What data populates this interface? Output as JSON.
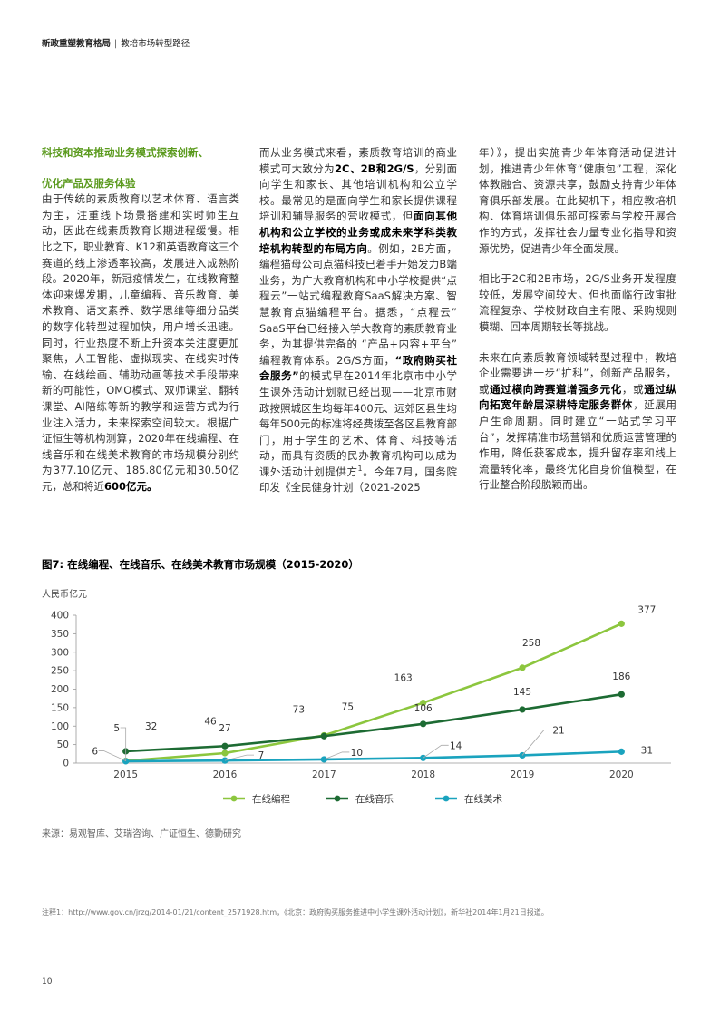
{
  "header": {
    "title": "新政重塑教育格局",
    "subtitle": "教培市场转型路径"
  },
  "col1": {
    "heading1": "科技和资本推动业务模式探索创新、",
    "heading2": "优化产品及服务体验",
    "text": "由于传统的素质教育以艺术体育、语言类为主，注重线下场景搭建和实时师生互动，因此在线素质教育长期进程缓慢。相比之下，职业教育、K12和英语教育这三个赛道的线上渗透率较高，发展进入成熟阶段。2020年，新冠疫情发生，在线教育整体迎来爆发期，儿童编程、音乐教育、美术教育、语文素养、数学思维等细分品类的数字化转型过程加快，用户增长迅速。同时，行业热度不断上升资本关注度更加聚焦，人工智能、虚拟现实、在线实时传输、在线绘画、辅助动画等技术手段带来新的可能性，OMO模式、双师课堂、翻转课堂、AI陪练等新的教学和运营方式为行业注入活力，未来探索空间较大。根据广证恒生等机构测算，2020年在线编程、在线音乐和在线美术教育的市场规模分别约为377.10亿元、185.80亿元和30.50亿元，总和将近",
    "text_bold": "600亿元。"
  },
  "col2": {
    "t1": "而从业务模式来看，素质教育培训的商业模式可大致分为",
    "b1": "2C、2B和2G/S",
    "t2": "，分别面向学生和家长、其他培训机构和公立学校。最常见的是面向学生和家长提供课程培训和辅导服务的营收模式，但",
    "b2": "面向其他机构和公立学校的业务或成未来学科类教培机构转型的布局方向",
    "t3": "。例如，2B方面，编程猫母公司点猫科技已着手开始发力B端业务，为广大教育机构和中小学校提供“点程云”一站式编程教育SaaS解决方案、智慧教育点猫编程平台。据悉，“点程云” SaaS平台已经接入学大教育的素质教育业务，为其提供完备的 “产品+内容+平台” 编程教育体系。2G/S方面，",
    "b3": "“政府购买社会服务”",
    "t4": "的模式早在2014年北京市中小学生课外活动计划就已经出现——北京市财政按照城区生均每年400元、远郊区县生均每年500元的标准将经费拨至各区县教育部门，用于学生的艺术、体育、科技等活动，而具有资质的民办教育机构可以成为课外活动计划提供方",
    "sup": "1",
    "t5": "。今年7月，国务院印发《全民健身计划（2021-2025"
  },
  "col3": {
    "p1": "年）》，提出实施青少年体育活动促进计划，推进青少年体育“健康包”工程，深化体教融合、资源共享，鼓励支持青少年体育俱乐部发展。在此契机下，相应教培机构、体育培训俱乐部可探索与学校开展合作的方式，发挥社会力量专业化指导和资源优势，促进青少年全面发展。",
    "p2": "相比于2C和2B市场，2G/S业务开发程度较低，发展空间较大。但也面临行政审批流程复杂、学校财政自主有限、采购规则模糊、回本周期较长等挑战。",
    "p3_t1": "未来在向素质教育领域转型过程中，教培企业需要进一步“扩科”，创新产品服务，或",
    "p3_b1": "通过横向跨赛道增强多元化",
    "p3_t2": "，或",
    "p3_b2": "通过纵向拓宽年龄层深耕特定服务群体",
    "p3_t3": "，延展用户生命周期。同时建立“一站式学习平台”，发挥精准市场营销和优质运营管理的作用，降低获客成本，提升留存率和线上流量转化率，最终优化自身价值模型，在行业整合阶段脱颖而出。"
  },
  "figure": {
    "title": "图7: 在线编程、在线音乐、在线美术教育市场规模（2015-2020）",
    "unit": "人民币亿元",
    "source": "来源：易观智库、艾瑞咨询、广证恒生、德勤研究",
    "note": "注释1：http://www.gov.cn/jrzg/2014-01/21/content_2571928.htm，《北京：政府购买服务推进中小学生课外活动计划》，新华社2014年1月21日报道。"
  },
  "chart_data": {
    "type": "line",
    "x": [
      "2015",
      "2016",
      "2017",
      "2018",
      "2019",
      "2020"
    ],
    "ylim": [
      0,
      400
    ],
    "yticks": [
      0,
      50,
      100,
      150,
      200,
      250,
      300,
      350,
      400
    ],
    "ylabel": "人民币亿元",
    "legend": "bottom",
    "grid": false,
    "series": [
      {
        "name": "在线编程",
        "color": "#8cc63e",
        "values": [
          6,
          27,
          75,
          163,
          258,
          377
        ]
      },
      {
        "name": "在线音乐",
        "color": "#1d6b33",
        "values": [
          32,
          46,
          73,
          106,
          145,
          186
        ]
      },
      {
        "name": "在线美术",
        "color": "#1aa3be",
        "values": [
          5,
          7,
          10,
          14,
          21,
          31
        ]
      }
    ]
  },
  "page": {
    "number": "10"
  }
}
